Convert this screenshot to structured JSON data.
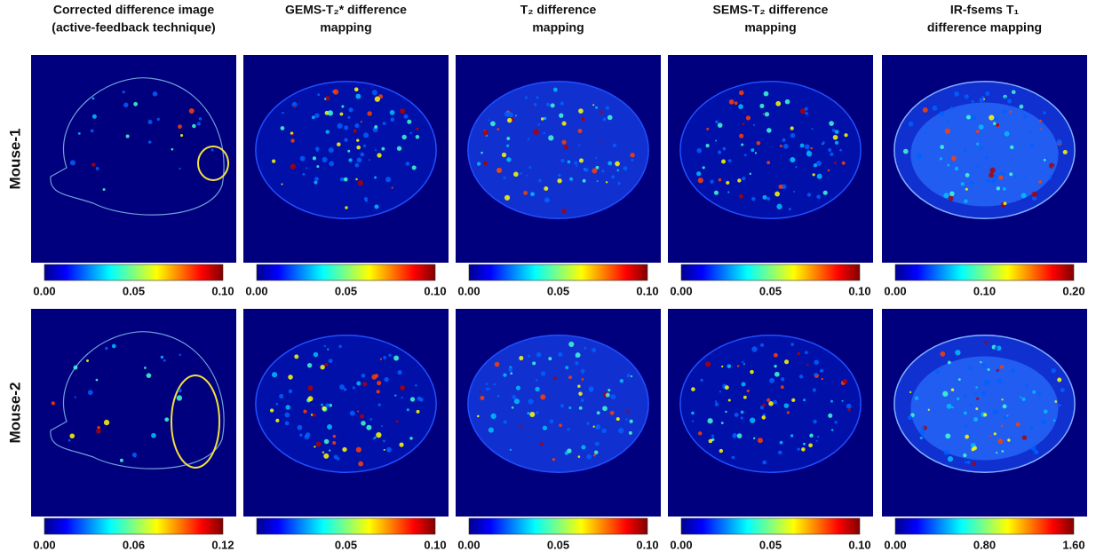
{
  "columns": [
    {
      "title": [
        "Corrected difference image",
        "(active-feedback technique)"
      ]
    },
    {
      "title": [
        "GEMS-T₂* difference",
        "mapping"
      ]
    },
    {
      "title": [
        "T₂ difference",
        "mapping"
      ]
    },
    {
      "title": [
        "SEMS-T₂ difference",
        "mapping"
      ]
    },
    {
      "title": [
        "IR-fsems T₁",
        "difference mapping"
      ]
    }
  ],
  "rows": [
    {
      "label": "Mouse-1",
      "colorbars": [
        [
          "0.00",
          "0.05",
          "0.10"
        ],
        [
          "0.00",
          "0.05",
          "0.10"
        ],
        [
          "0.00",
          "0.05",
          "0.10"
        ],
        [
          "0.00",
          "0.05",
          "0.10"
        ],
        [
          "0.00",
          "0.10",
          "0.20"
        ]
      ]
    },
    {
      "label": "Mouse-2",
      "colorbars": [
        [
          "0.00",
          "0.06",
          "0.12"
        ],
        [
          "0.05",
          "0.10"
        ],
        [
          "0.00",
          "0.05",
          "0.10"
        ],
        [
          "0.00",
          "0.05",
          "0.10"
        ],
        [
          "0.00",
          "0.80",
          "1.60"
        ]
      ]
    }
  ]
}
